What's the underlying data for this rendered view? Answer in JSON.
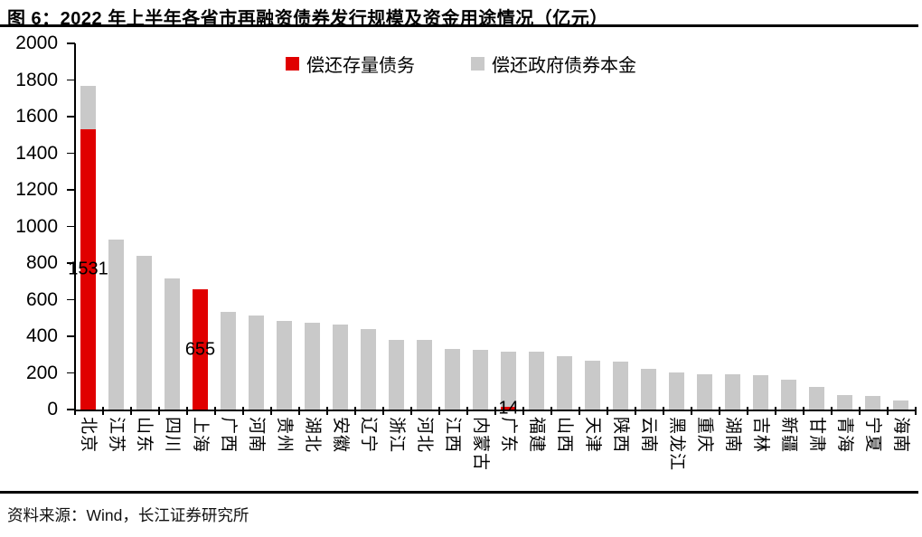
{
  "figure": {
    "title": "图 6：2022 年上半年各省市再融资债券发行规模及资金用途情况（亿元）",
    "source": "资料来源：Wind，长江证券研究所"
  },
  "colors": {
    "repay_existing_debt_red": "#e00000",
    "repay_bond_principal_gray": "#c9c9c9",
    "axis_black": "#000000"
  },
  "chart_data": {
    "type": "bar",
    "stacked": true,
    "title": "2022 年上半年各省市再融资债券发行规模及资金用途情况",
    "unit": "亿元",
    "ylim": [
      0,
      2000
    ],
    "ytick_step": 200,
    "grid": false,
    "legend_position": "top-center",
    "categories": [
      "北京",
      "江苏",
      "山东",
      "四川",
      "上海",
      "广西",
      "河南",
      "贵州",
      "湖北",
      "安徽",
      "辽宁",
      "浙江",
      "河北",
      "江西",
      "内蒙古",
      "广东",
      "福建",
      "山西",
      "天津",
      "陕西",
      "云南",
      "黑龙江",
      "重庆",
      "湖南",
      "吉林",
      "新疆",
      "甘肃",
      "青海",
      "宁夏",
      "海南"
    ],
    "series": [
      {
        "name": "偿还存量债务",
        "color": "#e00000",
        "values": [
          1531,
          0,
          0,
          0,
          655,
          0,
          0,
          0,
          0,
          0,
          0,
          0,
          0,
          0,
          0,
          14,
          0,
          0,
          0,
          0,
          0,
          0,
          0,
          0,
          0,
          0,
          0,
          0,
          0,
          0
        ]
      },
      {
        "name": "偿还政府债券本金",
        "color": "#c9c9c9",
        "values": [
          239,
          930,
          838,
          715,
          0,
          535,
          515,
          485,
          472,
          462,
          438,
          380,
          380,
          332,
          325,
          304,
          314,
          292,
          268,
          260,
          220,
          203,
          192,
          192,
          188,
          165,
          124,
          79,
          76,
          50
        ]
      }
    ],
    "data_labels": {
      "labeled_series": "偿还存量债务",
      "shown_values": [
        1531,
        655,
        14
      ]
    }
  }
}
